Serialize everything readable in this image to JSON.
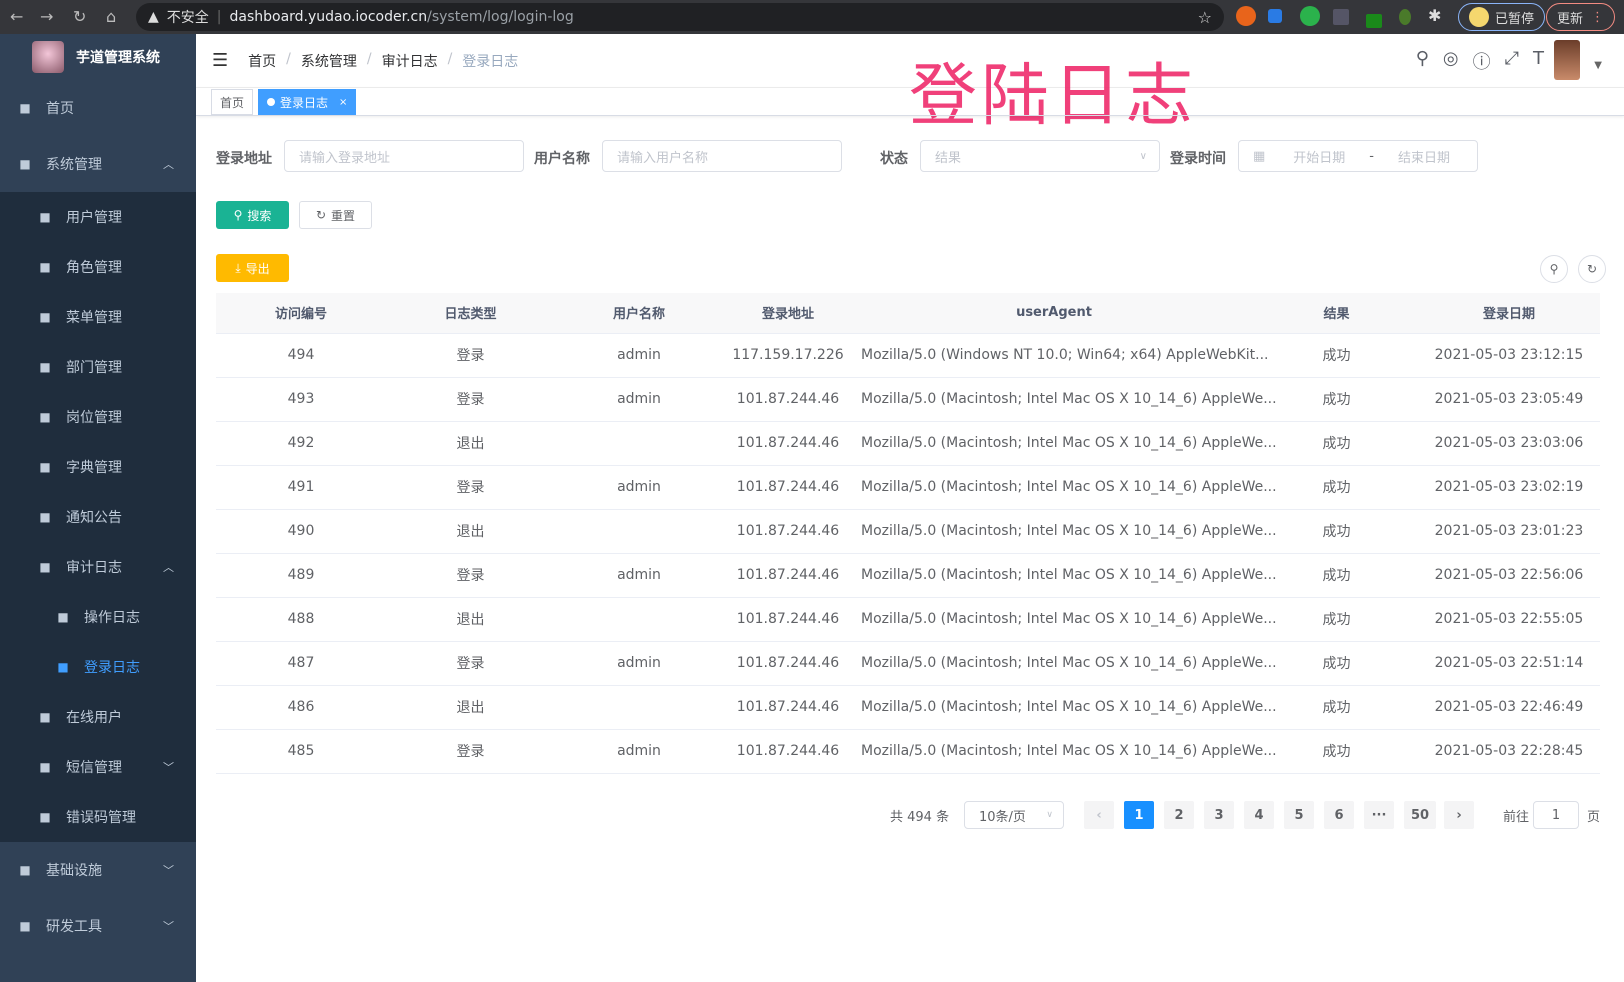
{
  "browser": {
    "security": "不安全",
    "url_host": "dashboard.yudao.iocoder.cn",
    "url_path": "/system/log/login-log",
    "profile": "已暂停",
    "update": "更新"
  },
  "overlay_title": "登陆日志",
  "sidebar": {
    "title": "芋道管理系统",
    "items": [
      {
        "label": "首页",
        "icon": "dashboard-icon",
        "level": 0
      },
      {
        "label": "系统管理",
        "icon": "gear-icon",
        "level": 0,
        "arrow": "up"
      },
      {
        "label": "用户管理",
        "icon": "user-icon",
        "level": 1
      },
      {
        "label": "角色管理",
        "icon": "peoples-icon",
        "level": 1
      },
      {
        "label": "菜单管理",
        "icon": "tree-table-icon",
        "level": 1
      },
      {
        "label": "部门管理",
        "icon": "tree-icon",
        "level": 1
      },
      {
        "label": "岗位管理",
        "icon": "post-icon",
        "level": 1
      },
      {
        "label": "字典管理",
        "icon": "dict-icon",
        "level": 1
      },
      {
        "label": "通知公告",
        "icon": "message-icon",
        "level": 1
      },
      {
        "label": "审计日志",
        "icon": "log-icon",
        "level": 1,
        "arrow": "up"
      },
      {
        "label": "操作日志",
        "icon": "form-icon",
        "level": 2
      },
      {
        "label": "登录日志",
        "icon": "logininfor-icon",
        "level": 2,
        "active": true
      },
      {
        "label": "在线用户",
        "icon": "online-icon",
        "level": 1
      },
      {
        "label": "短信管理",
        "icon": "validcode-icon",
        "level": 1,
        "arrow": "down"
      },
      {
        "label": "错误码管理",
        "icon": "code-icon",
        "level": 1
      },
      {
        "label": "基础设施",
        "icon": "monitor-icon",
        "level": 0,
        "arrow": "down"
      },
      {
        "label": "研发工具",
        "icon": "tool-icon",
        "level": 0,
        "arrow": "down"
      }
    ]
  },
  "breadcrumb": [
    "首页",
    "系统管理",
    "审计日志",
    "登录日志"
  ],
  "tags": [
    {
      "label": "首页"
    },
    {
      "label": "登录日志",
      "active": true
    }
  ],
  "search": {
    "ip_label": "登录地址",
    "ip_placeholder": "请输入登录地址",
    "user_label": "用户名称",
    "user_placeholder": "请输入用户名称",
    "status_label": "状态",
    "status_placeholder": "结果",
    "time_label": "登录时间",
    "start_placeholder": "开始日期",
    "range_sep": "-",
    "end_placeholder": "结束日期",
    "search_btn": "搜索",
    "reset_btn": "重置",
    "export_btn": "导出"
  },
  "colors": {
    "primary": "#1890ff",
    "search": "#1ab394",
    "export": "#ffba00",
    "sidebar": "#304156"
  },
  "table": {
    "columns": [
      "访问编号",
      "日志类型",
      "用户名称",
      "登录地址",
      "userAgent",
      "结果",
      "登录日期"
    ],
    "rows": [
      [
        "494",
        "登录",
        "admin",
        "117.159.17.226",
        "Mozilla/5.0 (Windows NT 10.0; Win64; x64) AppleWebKit...",
        "成功",
        "2021-05-03 23:12:15"
      ],
      [
        "493",
        "登录",
        "admin",
        "101.87.244.46",
        "Mozilla/5.0 (Macintosh; Intel Mac OS X 10_14_6) AppleWe...",
        "成功",
        "2021-05-03 23:05:49"
      ],
      [
        "492",
        "退出",
        "",
        "101.87.244.46",
        "Mozilla/5.0 (Macintosh; Intel Mac OS X 10_14_6) AppleWe...",
        "成功",
        "2021-05-03 23:03:06"
      ],
      [
        "491",
        "登录",
        "admin",
        "101.87.244.46",
        "Mozilla/5.0 (Macintosh; Intel Mac OS X 10_14_6) AppleWe...",
        "成功",
        "2021-05-03 23:02:19"
      ],
      [
        "490",
        "退出",
        "",
        "101.87.244.46",
        "Mozilla/5.0 (Macintosh; Intel Mac OS X 10_14_6) AppleWe...",
        "成功",
        "2021-05-03 23:01:23"
      ],
      [
        "489",
        "登录",
        "admin",
        "101.87.244.46",
        "Mozilla/5.0 (Macintosh; Intel Mac OS X 10_14_6) AppleWe...",
        "成功",
        "2021-05-03 22:56:06"
      ],
      [
        "488",
        "退出",
        "",
        "101.87.244.46",
        "Mozilla/5.0 (Macintosh; Intel Mac OS X 10_14_6) AppleWe...",
        "成功",
        "2021-05-03 22:55:05"
      ],
      [
        "487",
        "登录",
        "admin",
        "101.87.244.46",
        "Mozilla/5.0 (Macintosh; Intel Mac OS X 10_14_6) AppleWe...",
        "成功",
        "2021-05-03 22:51:14"
      ],
      [
        "486",
        "退出",
        "",
        "101.87.244.46",
        "Mozilla/5.0 (Macintosh; Intel Mac OS X 10_14_6) AppleWe...",
        "成功",
        "2021-05-03 22:46:49"
      ],
      [
        "485",
        "登录",
        "admin",
        "101.87.244.46",
        "Mozilla/5.0 (Macintosh; Intel Mac OS X 10_14_6) AppleWe...",
        "成功",
        "2021-05-03 22:28:45"
      ]
    ]
  },
  "pagination": {
    "total": "共 494 条",
    "page_size": "10条/页",
    "pages": [
      "1",
      "2",
      "3",
      "4",
      "5",
      "6",
      "···",
      "50"
    ],
    "current": "1",
    "goto_label": "前往",
    "goto_value": "1",
    "page_unit": "页"
  }
}
